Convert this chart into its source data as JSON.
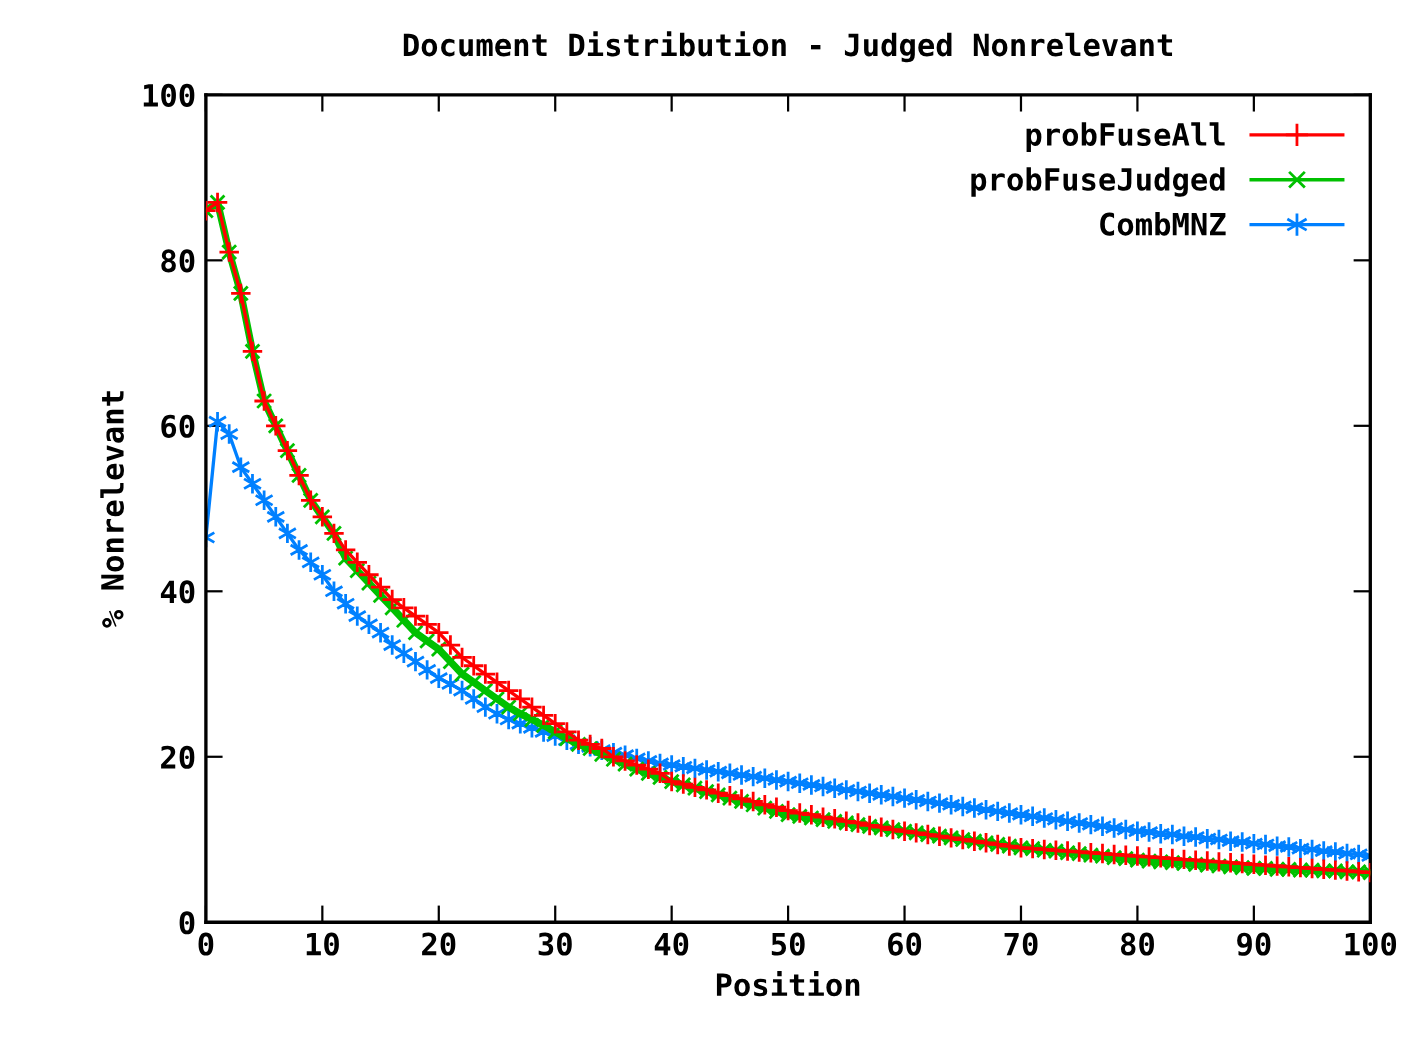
{
  "chart_data": {
    "type": "line",
    "title": "Document Distribution - Judged Nonrelevant",
    "xlabel": "Position",
    "ylabel": "% Nonrelevant",
    "xlim": [
      0,
      100
    ],
    "xticks": [
      0,
      10,
      20,
      30,
      40,
      50,
      60,
      70,
      80,
      90,
      100
    ],
    "ylim": [
      0,
      100
    ],
    "yticks": [
      0,
      20,
      40,
      60,
      80,
      100
    ],
    "x": [
      0,
      1,
      2,
      3,
      4,
      5,
      6,
      7,
      8,
      9,
      10,
      11,
      12,
      13,
      14,
      15,
      16,
      17,
      18,
      19,
      20,
      21,
      22,
      23,
      24,
      25,
      26,
      27,
      28,
      29,
      30,
      31,
      32,
      33,
      34,
      35,
      36,
      37,
      38,
      39,
      40,
      41,
      42,
      43,
      44,
      45,
      46,
      47,
      48,
      49,
      50,
      51,
      52,
      53,
      54,
      55,
      56,
      57,
      58,
      59,
      60,
      61,
      62,
      63,
      64,
      65,
      66,
      67,
      68,
      69,
      70,
      71,
      72,
      73,
      74,
      75,
      76,
      77,
      78,
      79,
      80,
      81,
      82,
      83,
      84,
      85,
      86,
      87,
      88,
      89,
      90,
      91,
      92,
      93,
      94,
      95,
      96,
      97,
      98,
      99,
      100
    ],
    "grid": false,
    "legend": "top right",
    "line_style": "solid",
    "series": [
      {
        "name": "probFuseAll",
        "color": "#ff0000",
        "marker": "cross",
        "values": [
          86,
          87,
          81,
          76,
          69,
          63,
          60,
          57,
          54,
          51,
          49,
          47,
          45,
          43.5,
          42,
          40.5,
          39,
          38,
          37,
          36,
          35,
          33.5,
          32,
          31,
          30,
          29,
          28,
          27,
          26,
          25,
          24,
          23,
          22,
          21.5,
          21,
          20,
          19.5,
          19,
          18.5,
          18,
          17,
          16.7,
          16.3,
          16,
          15.6,
          15.3,
          14.9,
          14.6,
          14.2,
          13.9,
          13.5,
          13.2,
          13,
          12.7,
          12.5,
          12.2,
          12,
          11.7,
          11.5,
          11.2,
          11,
          10.8,
          10.6,
          10.4,
          10.2,
          10,
          9.8,
          9.6,
          9.4,
          9.2,
          9,
          8.9,
          8.8,
          8.7,
          8.6,
          8.5,
          8.4,
          8.3,
          8.2,
          8.1,
          8,
          7.9,
          7.8,
          7.7,
          7.6,
          7.5,
          7.4,
          7.3,
          7.2,
          7.1,
          7,
          6.9,
          6.8,
          6.7,
          6.6,
          6.5,
          6.4,
          6.3,
          6.2,
          6.1,
          6
        ]
      },
      {
        "name": "probFuseJudged",
        "color": "#00c000",
        "marker": "cross",
        "values": [
          86,
          87,
          81,
          76,
          69,
          63,
          60,
          57,
          54,
          51,
          49,
          47,
          44,
          42.5,
          41,
          39.5,
          38,
          36.5,
          35,
          34,
          33,
          31.5,
          30,
          29,
          28,
          27,
          26,
          25.2,
          24.5,
          23.8,
          23,
          22.2,
          21.5,
          21,
          20.3,
          19.7,
          19.1,
          18.5,
          18,
          17.5,
          17,
          16.6,
          16.2,
          15.8,
          15.4,
          15,
          14.6,
          14.2,
          13.8,
          13.4,
          13,
          12.8,
          12.6,
          12.4,
          12.2,
          12,
          11.8,
          11.6,
          11.4,
          11.2,
          11,
          10.8,
          10.6,
          10.4,
          10.2,
          10,
          9.8,
          9.6,
          9.4,
          9.2,
          9,
          8.9,
          8.7,
          8.6,
          8.4,
          8.3,
          8.1,
          8,
          7.8,
          7.7,
          7.5,
          7.4,
          7.3,
          7.2,
          7.1,
          7,
          6.9,
          6.8,
          6.7,
          6.6,
          6.5,
          6.5,
          6.4,
          6.4,
          6.3,
          6.3,
          6.2,
          6.2,
          6.1,
          6.1,
          6
        ]
      },
      {
        "name": "CombMNZ",
        "color": "#0080ff",
        "marker": "cross",
        "values": [
          46.5,
          60.5,
          59,
          55,
          53,
          51,
          49,
          47,
          45,
          43.5,
          42,
          40,
          38.5,
          37,
          36,
          35,
          33.5,
          32.5,
          31.5,
          30.5,
          29.5,
          28.8,
          28,
          27,
          26,
          25.2,
          24.5,
          24,
          23.5,
          23,
          22.5,
          22,
          21.5,
          21.2,
          20.8,
          20.5,
          20.2,
          19.8,
          19.5,
          19.2,
          19,
          18.8,
          18.6,
          18.4,
          18.2,
          18,
          17.8,
          17.6,
          17.4,
          17.2,
          17,
          16.8,
          16.6,
          16.4,
          16.2,
          16,
          15.8,
          15.6,
          15.4,
          15.2,
          15,
          14.8,
          14.6,
          14.4,
          14.2,
          14,
          13.8,
          13.6,
          13.4,
          13.2,
          13,
          12.8,
          12.6,
          12.4,
          12.2,
          12,
          11.8,
          11.6,
          11.4,
          11.2,
          11,
          10.9,
          10.7,
          10.6,
          10.4,
          10.3,
          10.1,
          10,
          9.8,
          9.7,
          9.5,
          9.4,
          9.2,
          9.1,
          8.9,
          8.8,
          8.6,
          8.5,
          8.3,
          8.2,
          8
        ]
      }
    ]
  }
}
